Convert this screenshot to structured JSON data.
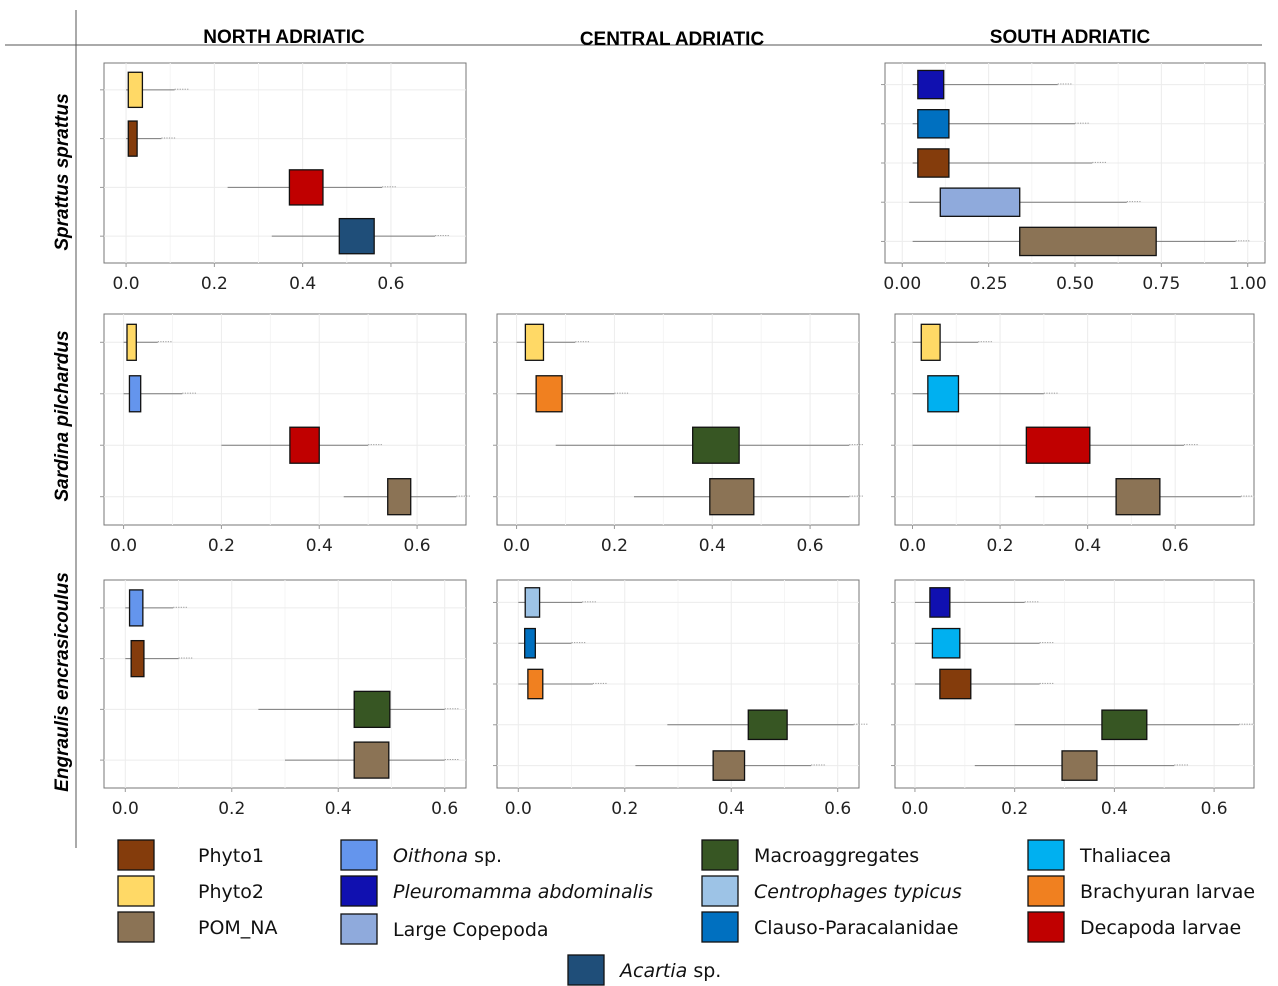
{
  "colors": {
    "Phyto1": "#843c0c",
    "Phyto2": "#ffd966",
    "POM_NA": "#8b7355",
    "Oithona sp.": "#6495ed",
    "Pleuromamma abdominalis": "#1010b0",
    "Large Copepoda": "#8faadc",
    "Acartia sp.": "#1f4e79",
    "Macroaggregates": "#375623",
    "Centrophages typicus": "#9dc3e6",
    "Clauso-Paracalanidae": "#0070c0",
    "Thaliacea": "#00b0f0",
    "Brachyuran larvae": "#f08020",
    "Decapoda larvae": "#c00000"
  },
  "legend": {
    "items": [
      {
        "key": "Phyto1",
        "label": "Phyto1",
        "suffix": "",
        "italic": false
      },
      {
        "key": "Phyto2",
        "label": "Phyto2",
        "suffix": "",
        "italic": false
      },
      {
        "key": "POM_NA",
        "label": "POM_NA",
        "suffix": "",
        "italic": false
      },
      {
        "key": "Oithona sp.",
        "label": "Oithona",
        "suffix": " sp.",
        "italic": true
      },
      {
        "key": "Pleuromamma abdominalis",
        "label": "Pleuromamma abdominalis",
        "suffix": "",
        "italic": true
      },
      {
        "key": "Large Copepoda",
        "label": "Large Copepoda",
        "suffix": "",
        "italic": false
      },
      {
        "key": "Macroaggregates",
        "label": "Macroaggregates",
        "suffix": "",
        "italic": false
      },
      {
        "key": "Centrophages typicus",
        "label": "Centrophages typicus",
        "suffix": "",
        "italic": true
      },
      {
        "key": "Clauso-Paracalanidae",
        "label": "Clauso-Paracalanidae",
        "suffix": "",
        "italic": false
      },
      {
        "key": "Thaliacea",
        "label": "Thaliacea",
        "suffix": "",
        "italic": false
      },
      {
        "key": "Brachyuran larvae",
        "label": "Brachyuran larvae",
        "suffix": "",
        "italic": false
      },
      {
        "key": "Decapoda larvae",
        "label": "Decapoda larvae",
        "suffix": "",
        "italic": false
      },
      {
        "key": "Acartia sp.",
        "label": "Acartia",
        "suffix": " sp.",
        "italic": true
      }
    ]
  },
  "chart_data": {
    "type": "boxplot",
    "columns": [
      "NORTH ADRIATIC",
      "CENTRAL ADRIATIC",
      "SOUTH ADRIATIC"
    ],
    "rows": [
      "Sprattus sprattus",
      "Sardina pilchardus",
      "Engraulis encrasicoulus"
    ],
    "panels": [
      {
        "col": 0,
        "row": 0,
        "xlim": [
          -0.05,
          0.77
        ],
        "ticks": [
          0.0,
          0.2,
          0.4,
          0.6
        ],
        "tick_labels": [
          "0.0",
          "0.2",
          "0.4",
          "0.6"
        ],
        "sources": [
          {
            "name": "Phyto2",
            "q1": 0.005,
            "q3": 0.037,
            "wlo": 0.0,
            "whi": 0.11
          },
          {
            "name": "Phyto1",
            "q1": 0.005,
            "q3": 0.025,
            "wlo": 0.0,
            "whi": 0.08
          },
          {
            "name": "Decapoda larvae",
            "q1": 0.37,
            "q3": 0.446,
            "wlo": 0.23,
            "whi": 0.58
          },
          {
            "name": "Acartia sp.",
            "q1": 0.483,
            "q3": 0.562,
            "wlo": 0.33,
            "whi": 0.7
          }
        ]
      },
      {
        "col": 2,
        "row": 0,
        "xlim": [
          -0.05,
          1.05
        ],
        "ticks": [
          0.0,
          0.25,
          0.5,
          0.75,
          1.0
        ],
        "tick_labels": [
          "0.00",
          "0.25",
          "0.50",
          "0.75",
          "1.00"
        ],
        "sources": [
          {
            "name": "Pleuromamma abdominalis",
            "q1": 0.045,
            "q3": 0.12,
            "wlo": 0.03,
            "whi": 0.45
          },
          {
            "name": "Clauso-Paracalanidae",
            "q1": 0.045,
            "q3": 0.135,
            "wlo": 0.03,
            "whi": 0.5
          },
          {
            "name": "Phyto1",
            "q1": 0.045,
            "q3": 0.135,
            "wlo": 0.03,
            "whi": 0.55
          },
          {
            "name": "Large Copepoda",
            "q1": 0.11,
            "q3": 0.34,
            "wlo": 0.02,
            "whi": 0.65
          },
          {
            "name": "POM_NA",
            "q1": 0.34,
            "q3": 0.735,
            "wlo": 0.03,
            "whi": 0.965
          }
        ]
      },
      {
        "col": 0,
        "row": 1,
        "xlim": [
          -0.04,
          0.7
        ],
        "ticks": [
          0.0,
          0.2,
          0.4,
          0.6
        ],
        "tick_labels": [
          "0.0",
          "0.2",
          "0.4",
          "0.6"
        ],
        "sources": [
          {
            "name": "Phyto2",
            "q1": 0.007,
            "q3": 0.026,
            "wlo": 0.0,
            "whi": 0.07
          },
          {
            "name": "Oithona sp.",
            "q1": 0.012,
            "q3": 0.035,
            "wlo": 0.0,
            "whi": 0.12
          },
          {
            "name": "Decapoda larvae",
            "q1": 0.34,
            "q3": 0.4,
            "wlo": 0.2,
            "whi": 0.5
          },
          {
            "name": "POM_NA",
            "q1": 0.54,
            "q3": 0.587,
            "wlo": 0.45,
            "whi": 0.68
          }
        ]
      },
      {
        "col": 1,
        "row": 1,
        "xlim": [
          -0.04,
          0.7
        ],
        "ticks": [
          0.0,
          0.2,
          0.4,
          0.6
        ],
        "tick_labels": [
          "0.0",
          "0.2",
          "0.4",
          "0.6"
        ],
        "sources": [
          {
            "name": "Phyto2",
            "q1": 0.018,
            "q3": 0.055,
            "wlo": 0.0,
            "whi": 0.12
          },
          {
            "name": "Brachyuran larvae",
            "q1": 0.04,
            "q3": 0.093,
            "wlo": 0.0,
            "whi": 0.2
          },
          {
            "name": "Macroaggregates",
            "q1": 0.36,
            "q3": 0.455,
            "wlo": 0.08,
            "whi": 0.68
          },
          {
            "name": "POM_NA",
            "q1": 0.395,
            "q3": 0.485,
            "wlo": 0.24,
            "whi": 0.68
          }
        ]
      },
      {
        "col": 2,
        "row": 1,
        "xlim": [
          -0.04,
          0.78
        ],
        "ticks": [
          0.0,
          0.2,
          0.4,
          0.6
        ],
        "tick_labels": [
          "0.0",
          "0.2",
          "0.4",
          "0.6"
        ],
        "sources": [
          {
            "name": "Phyto2",
            "q1": 0.02,
            "q3": 0.063,
            "wlo": 0.0,
            "whi": 0.15
          },
          {
            "name": "Thaliacea",
            "q1": 0.035,
            "q3": 0.105,
            "wlo": 0.0,
            "whi": 0.3
          },
          {
            "name": "Decapoda larvae",
            "q1": 0.26,
            "q3": 0.405,
            "wlo": 0.0,
            "whi": 0.62
          },
          {
            "name": "POM_NA",
            "q1": 0.465,
            "q3": 0.565,
            "wlo": 0.28,
            "whi": 0.75
          }
        ]
      },
      {
        "col": 0,
        "row": 2,
        "xlim": [
          -0.04,
          0.64
        ],
        "ticks": [
          0.0,
          0.2,
          0.4,
          0.6
        ],
        "tick_labels": [
          "0.0",
          "0.2",
          "0.4",
          "0.6"
        ],
        "sources": [
          {
            "name": "Oithona sp.",
            "q1": 0.008,
            "q3": 0.033,
            "wlo": 0.0,
            "whi": 0.09
          },
          {
            "name": "Phyto1",
            "q1": 0.011,
            "q3": 0.035,
            "wlo": 0.0,
            "whi": 0.1
          },
          {
            "name": "Macroaggregates",
            "q1": 0.43,
            "q3": 0.497,
            "wlo": 0.25,
            "whi": 0.6
          },
          {
            "name": "POM_NA",
            "q1": 0.43,
            "q3": 0.495,
            "wlo": 0.3,
            "whi": 0.6
          }
        ]
      },
      {
        "col": 1,
        "row": 2,
        "xlim": [
          -0.04,
          0.64
        ],
        "ticks": [
          0.0,
          0.2,
          0.4,
          0.6
        ],
        "tick_labels": [
          "0.0",
          "0.2",
          "0.4",
          "0.6"
        ],
        "sources": [
          {
            "name": "Centrophages typicus",
            "q1": 0.013,
            "q3": 0.04,
            "wlo": 0.0,
            "whi": 0.12
          },
          {
            "name": "Clauso-Paracalanidae",
            "q1": 0.012,
            "q3": 0.032,
            "wlo": 0.0,
            "whi": 0.1
          },
          {
            "name": "Brachyuran larvae",
            "q1": 0.018,
            "q3": 0.046,
            "wlo": 0.0,
            "whi": 0.14
          },
          {
            "name": "Macroaggregates",
            "q1": 0.432,
            "q3": 0.505,
            "wlo": 0.28,
            "whi": 0.63
          },
          {
            "name": "POM_NA",
            "q1": 0.366,
            "q3": 0.425,
            "wlo": 0.22,
            "whi": 0.55
          }
        ]
      },
      {
        "col": 2,
        "row": 2,
        "xlim": [
          -0.04,
          0.68
        ],
        "ticks": [
          0.0,
          0.2,
          0.4,
          0.6
        ],
        "tick_labels": [
          "0.0",
          "0.2",
          "0.4",
          "0.6"
        ],
        "sources": [
          {
            "name": "Pleuromamma abdominalis",
            "q1": 0.03,
            "q3": 0.07,
            "wlo": 0.0,
            "whi": 0.22
          },
          {
            "name": "Thaliacea",
            "q1": 0.035,
            "q3": 0.09,
            "wlo": 0.0,
            "whi": 0.25
          },
          {
            "name": "Phyto1",
            "q1": 0.05,
            "q3": 0.112,
            "wlo": 0.0,
            "whi": 0.25
          },
          {
            "name": "Macroaggregates",
            "q1": 0.375,
            "q3": 0.465,
            "wlo": 0.2,
            "whi": 0.65
          },
          {
            "name": "POM_NA",
            "q1": 0.295,
            "q3": 0.365,
            "wlo": 0.12,
            "whi": 0.52
          }
        ]
      }
    ]
  }
}
